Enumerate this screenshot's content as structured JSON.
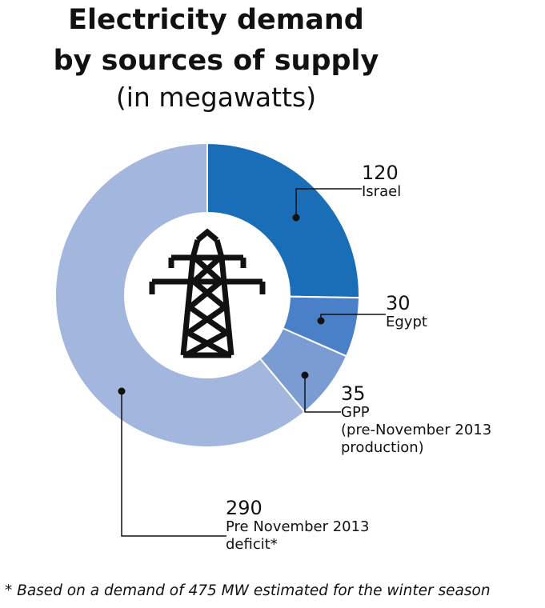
{
  "chart_data": {
    "type": "donut",
    "title": "Electricity demand\nby sources of supply",
    "subtitle": "(in megawatts)",
    "categories": [
      "Israel",
      "Egypt",
      "GPP\n(pre-November 2013\nproduction)",
      "Pre November 2013\ndeficit*"
    ],
    "values": [
      120,
      30,
      35,
      290
    ],
    "colors": [
      "#1a6db7",
      "#4a80c7",
      "#7b9cd3",
      "#a3b6dd"
    ],
    "footnote": "* Based on a demand of 475 MW estimated for the winter season"
  }
}
